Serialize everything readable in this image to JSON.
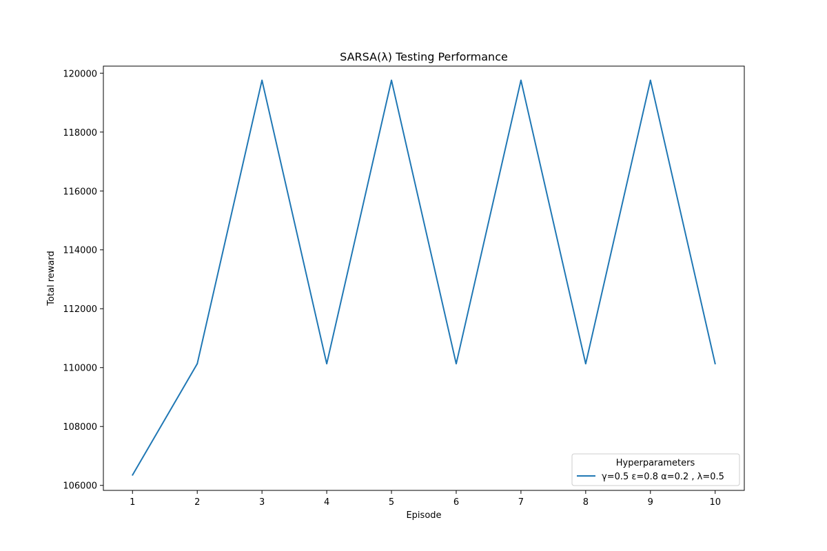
{
  "chart_data": {
    "type": "line",
    "title": "SARSA(λ) Testing Performance",
    "xlabel": "Episode",
    "ylabel": "Total reward",
    "x": [
      1,
      2,
      3,
      4,
      5,
      6,
      7,
      8,
      9,
      10
    ],
    "series": [
      {
        "name": "γ=0.5 ε=0.8 α=0.2 , λ=0.5",
        "color": "#1f77b4",
        "values": [
          106350,
          110130,
          119760,
          110130,
          119760,
          110130,
          119760,
          110130,
          119760,
          110130
        ]
      }
    ],
    "xticks": [
      1,
      2,
      3,
      4,
      5,
      6,
      7,
      8,
      9,
      10
    ],
    "yticks": [
      106000,
      108000,
      110000,
      112000,
      114000,
      116000,
      118000,
      120000
    ],
    "xlim": [
      0.55,
      10.45
    ],
    "ylim": [
      105830,
      120240
    ],
    "grid": false,
    "legend": {
      "title": "Hyperparameters",
      "placement": "lower-right"
    }
  }
}
